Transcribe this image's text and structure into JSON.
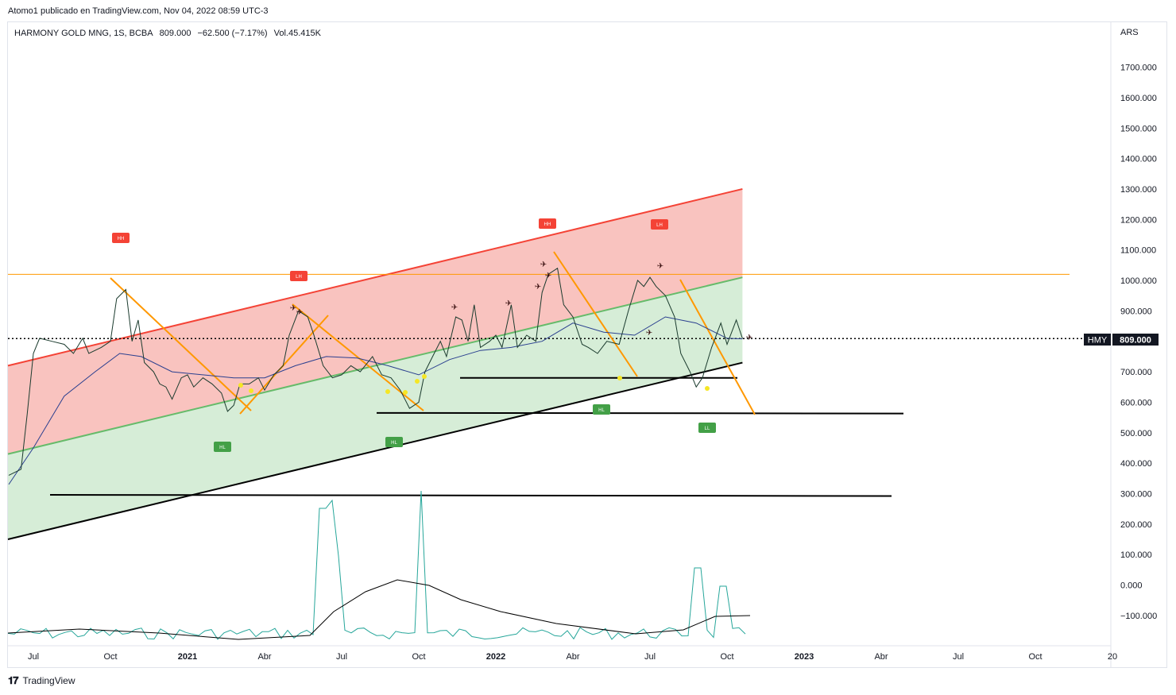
{
  "header": {
    "publisher": "Atomo1 publicado en TradingView.com, Nov 04, 2022 08:59 UTC-3"
  },
  "legend": {
    "symbol": "HARMONY GOLD MNG, 1S, BCBA",
    "price": "809.000",
    "change": "−62.500 (−7.17%)",
    "volume": "Vol.45.415K"
  },
  "axis": {
    "currency": "ARS"
  },
  "price_label": {
    "ticker": "HMY",
    "value": "809.000"
  },
  "footer": {
    "brand": "TradingView"
  },
  "colors": {
    "red_zone": "#f8bcb8",
    "green_zone": "#d4ecd5",
    "red_line": "#f44336",
    "green_line": "#66bb6a",
    "orange": "#ff9800",
    "price_line": "#1b3b2e",
    "ma": "#2a3f8f",
    "osc": "#26a69a"
  },
  "chart_data": {
    "type": "line",
    "yticks": [
      "1700.000",
      "1600.000",
      "1500.000",
      "1400.000",
      "1300.000",
      "1200.000",
      "1100.000",
      "1000.000",
      "900.000",
      "800.000",
      "700.000",
      "600.000",
      "500.000",
      "400.000",
      "300.000",
      "200.000",
      "100.000",
      "0.000",
      "−100.000"
    ],
    "ytick_values": [
      1700,
      1600,
      1500,
      1400,
      1300,
      1200,
      1100,
      1000,
      900,
      800,
      700,
      600,
      500,
      400,
      300,
      200,
      100,
      0,
      -100
    ],
    "xticks": [
      {
        "label": "Jul",
        "t": 2020.5
      },
      {
        "label": "Oct",
        "t": 2020.75
      },
      {
        "label": "2021",
        "t": 2021.0,
        "bold": true
      },
      {
        "label": "Abr",
        "t": 2021.25
      },
      {
        "label": "Jul",
        "t": 2021.5
      },
      {
        "label": "Oct",
        "t": 2021.75
      },
      {
        "label": "2022",
        "t": 2022.0,
        "bold": true
      },
      {
        "label": "Abr",
        "t": 2022.25
      },
      {
        "label": "Jul",
        "t": 2022.5
      },
      {
        "label": "Oct",
        "t": 2022.75
      },
      {
        "label": "2023",
        "t": 2023.0,
        "bold": true
      },
      {
        "label": "Abr",
        "t": 2023.25
      },
      {
        "label": "Jul",
        "t": 2023.5
      },
      {
        "label": "Oct",
        "t": 2023.75
      },
      {
        "label": "20",
        "t": 2024.0
      }
    ],
    "price": [
      [
        2020.42,
        360
      ],
      [
        2020.46,
        380
      ],
      [
        2020.48,
        560
      ],
      [
        2020.5,
        760
      ],
      [
        2020.52,
        810
      ],
      [
        2020.56,
        800
      ],
      [
        2020.6,
        790
      ],
      [
        2020.63,
        760
      ],
      [
        2020.66,
        810
      ],
      [
        2020.68,
        760
      ],
      [
        2020.72,
        780
      ],
      [
        2020.75,
        800
      ],
      [
        2020.77,
        940
      ],
      [
        2020.8,
        970
      ],
      [
        2020.82,
        800
      ],
      [
        2020.84,
        870
      ],
      [
        2020.86,
        730
      ],
      [
        2020.89,
        700
      ],
      [
        2020.91,
        660
      ],
      [
        2020.93,
        650
      ],
      [
        2020.95,
        610
      ],
      [
        2020.98,
        680
      ],
      [
        2021.0,
        690
      ],
      [
        2021.02,
        650
      ],
      [
        2021.05,
        680
      ],
      [
        2021.08,
        660
      ],
      [
        2021.11,
        630
      ],
      [
        2021.13,
        570
      ],
      [
        2021.15,
        590
      ],
      [
        2021.17,
        660
      ],
      [
        2021.2,
        660
      ],
      [
        2021.23,
        680
      ],
      [
        2021.25,
        640
      ],
      [
        2021.28,
        690
      ],
      [
        2021.31,
        720
      ],
      [
        2021.33,
        820
      ],
      [
        2021.36,
        900
      ],
      [
        2021.39,
        880
      ],
      [
        2021.41,
        820
      ],
      [
        2021.44,
        720
      ],
      [
        2021.47,
        680
      ],
      [
        2021.5,
        690
      ],
      [
        2021.53,
        720
      ],
      [
        2021.56,
        700
      ],
      [
        2021.6,
        750
      ],
      [
        2021.63,
        690
      ],
      [
        2021.66,
        680
      ],
      [
        2021.69,
        640
      ],
      [
        2021.72,
        580
      ],
      [
        2021.75,
        600
      ],
      [
        2021.77,
        700
      ],
      [
        2021.8,
        760
      ],
      [
        2021.82,
        800
      ],
      [
        2021.84,
        750
      ],
      [
        2021.87,
        880
      ],
      [
        2021.89,
        870
      ],
      [
        2021.91,
        800
      ],
      [
        2021.93,
        920
      ],
      [
        2021.95,
        780
      ],
      [
        2021.98,
        800
      ],
      [
        2022.0,
        820
      ],
      [
        2022.02,
        780
      ],
      [
        2022.05,
        920
      ],
      [
        2022.07,
        780
      ],
      [
        2022.1,
        820
      ],
      [
        2022.13,
        800
      ],
      [
        2022.15,
        960
      ],
      [
        2022.17,
        1020
      ],
      [
        2022.2,
        1040
      ],
      [
        2022.22,
        920
      ],
      [
        2022.25,
        880
      ],
      [
        2022.28,
        790
      ],
      [
        2022.3,
        780
      ],
      [
        2022.33,
        760
      ],
      [
        2022.36,
        800
      ],
      [
        2022.4,
        790
      ],
      [
        2022.43,
        900
      ],
      [
        2022.46,
        1000
      ],
      [
        2022.48,
        980
      ],
      [
        2022.5,
        1010
      ],
      [
        2022.52,
        980
      ],
      [
        2022.55,
        950
      ],
      [
        2022.58,
        880
      ],
      [
        2022.6,
        760
      ],
      [
        2022.63,
        700
      ],
      [
        2022.65,
        650
      ],
      [
        2022.67,
        680
      ],
      [
        2022.7,
        780
      ],
      [
        2022.73,
        860
      ],
      [
        2022.75,
        790
      ],
      [
        2022.78,
        870
      ],
      [
        2022.8,
        809
      ]
    ],
    "moving_average": [
      [
        2020.42,
        330
      ],
      [
        2020.5,
        450
      ],
      [
        2020.6,
        620
      ],
      [
        2020.7,
        700
      ],
      [
        2020.78,
        760
      ],
      [
        2020.85,
        750
      ],
      [
        2020.95,
        700
      ],
      [
        2021.05,
        690
      ],
      [
        2021.15,
        680
      ],
      [
        2021.25,
        680
      ],
      [
        2021.35,
        720
      ],
      [
        2021.45,
        750
      ],
      [
        2021.55,
        745
      ],
      [
        2021.65,
        720
      ],
      [
        2021.75,
        690
      ],
      [
        2021.85,
        740
      ],
      [
        2021.95,
        770
      ],
      [
        2022.05,
        780
      ],
      [
        2022.15,
        800
      ],
      [
        2022.25,
        860
      ],
      [
        2022.35,
        830
      ],
      [
        2022.45,
        820
      ],
      [
        2022.55,
        880
      ],
      [
        2022.65,
        860
      ],
      [
        2022.75,
        810
      ],
      [
        2022.8,
        808
      ]
    ],
    "oscillator_scale": "visual",
    "reference_lines": [
      {
        "y": 1020,
        "color": "orange"
      },
      {
        "y": 680
      },
      {
        "y": 565
      },
      {
        "y": 296
      }
    ],
    "channel": {
      "lower_start": [
        2020.42,
        150
      ],
      "lower_end": [
        2022.8,
        730
      ],
      "mid_end": [
        2022.8,
        1010
      ],
      "upper_start": [
        2020.42,
        720
      ],
      "upper_end": [
        2022.8,
        1300
      ],
      "mid_start": [
        2020.42,
        430
      ]
    }
  }
}
